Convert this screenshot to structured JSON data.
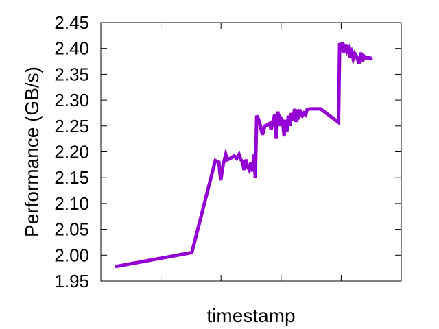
{
  "chart_data": {
    "type": "line",
    "title": "",
    "xlabel": "timestamp",
    "ylabel": "Performance (GB/s)",
    "xlim": [
      0,
      100
    ],
    "ylim": [
      1.95,
      2.45
    ],
    "yticks": [
      1.95,
      2.0,
      2.05,
      2.1,
      2.15,
      2.2,
      2.25,
      2.3,
      2.35,
      2.4,
      2.45
    ],
    "ytick_labels": [
      "1.95",
      "2.00",
      "2.05",
      "2.10",
      "2.15",
      "2.20",
      "2.25",
      "2.30",
      "2.35",
      "2.40",
      "2.45"
    ],
    "xticks": [
      20,
      40,
      60,
      80
    ],
    "show_xtick_labels": false,
    "grid": false,
    "legend": "none",
    "line_color": "#9400d3",
    "series": [
      {
        "x": [
          4.8,
          30.3,
          38.1,
          39.3,
          39.9,
          40.7,
          41.6,
          42.2,
          43.3,
          44.4,
          45.2,
          46.0,
          46.6,
          47.2,
          47.7,
          48.3,
          48.8,
          49.4,
          50.0,
          50.5,
          51.1,
          51.4,
          51.9,
          52.7,
          53.8,
          54.6,
          55.4,
          56.2,
          56.7,
          57.3,
          57.9,
          58.4,
          58.9,
          59.4,
          59.9,
          60.5,
          61.0,
          61.4,
          61.9,
          62.4,
          62.9,
          63.4,
          63.9,
          64.5,
          65.0,
          65.6,
          66.1,
          66.6,
          67.1,
          67.6,
          68.2,
          68.7,
          69.7,
          70.8,
          73.1,
          79.1,
          79.5,
          80.1,
          80.5,
          80.9,
          81.5,
          82.0,
          82.5,
          83.0,
          83.5,
          84.0,
          84.5,
          85.0,
          85.5,
          86.0,
          86.5,
          87.1,
          87.6,
          88.4,
          89.0,
          89.7,
          90.3
        ],
        "y": [
          1.978,
          2.005,
          2.183,
          2.18,
          2.145,
          2.175,
          2.195,
          2.185,
          2.188,
          2.192,
          2.187,
          2.195,
          2.185,
          2.18,
          2.165,
          2.185,
          2.172,
          2.165,
          2.18,
          2.162,
          2.195,
          2.15,
          2.27,
          2.26,
          2.233,
          2.25,
          2.252,
          2.255,
          2.243,
          2.26,
          2.272,
          2.225,
          2.278,
          2.25,
          2.265,
          2.26,
          2.23,
          2.262,
          2.238,
          2.27,
          2.25,
          2.275,
          2.26,
          2.283,
          2.258,
          2.282,
          2.27,
          2.276,
          2.27,
          2.275,
          2.272,
          2.282,
          2.283,
          2.283,
          2.283,
          2.257,
          2.41,
          2.402,
          2.412,
          2.392,
          2.408,
          2.395,
          2.4,
          2.383,
          2.392,
          2.38,
          2.39,
          2.386,
          2.378,
          2.37,
          2.392,
          2.375,
          2.385,
          2.381,
          2.383,
          2.38,
          2.382
        ]
      }
    ]
  }
}
